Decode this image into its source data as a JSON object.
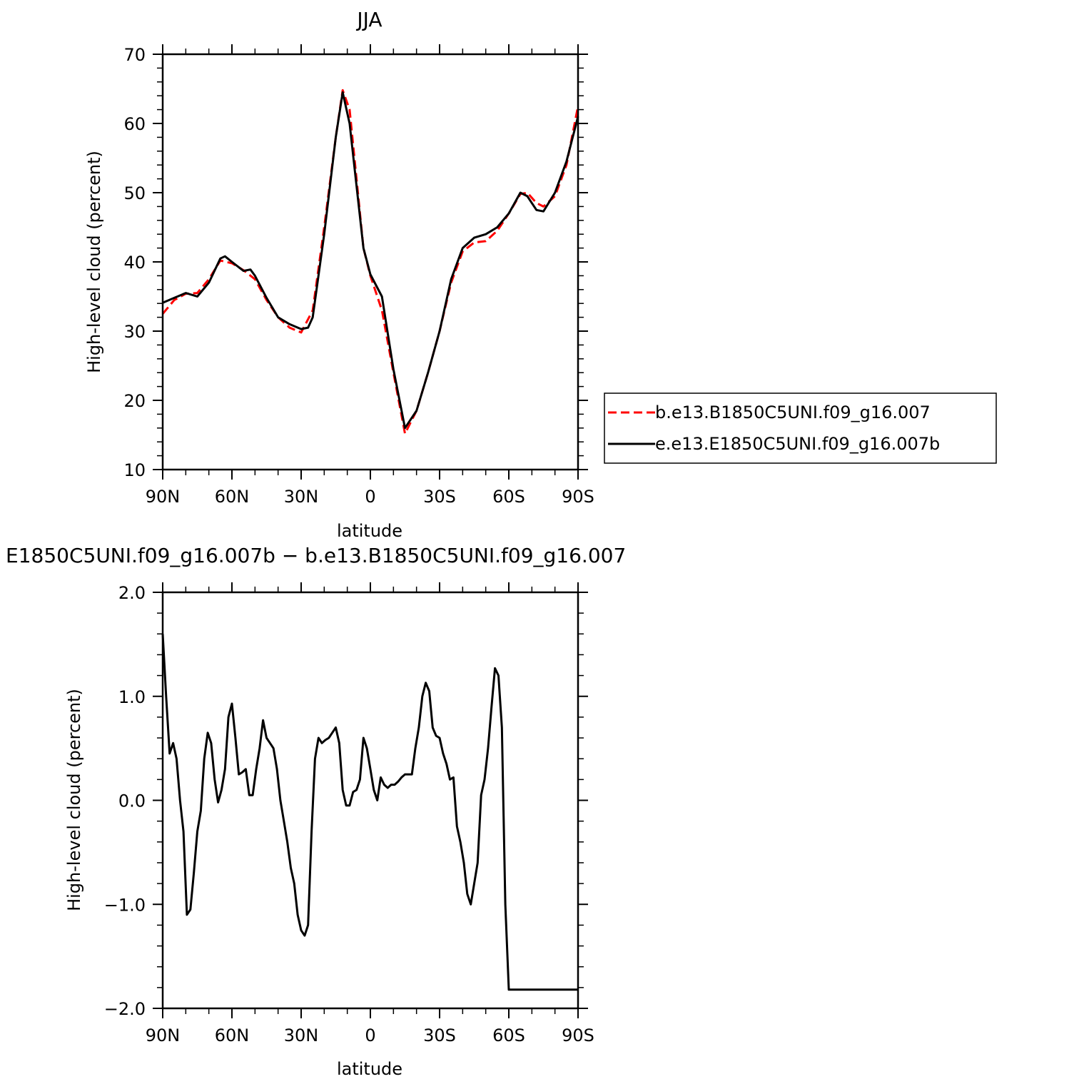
{
  "chart_data": [
    {
      "type": "line",
      "title": "JJA",
      "xlabel": "latitude",
      "ylabel": "High-level cloud (percent)",
      "xlim": [
        90,
        -90
      ],
      "ylim": [
        10,
        70
      ],
      "x_ticks": [
        {
          "value": 90,
          "label": "90N"
        },
        {
          "value": 60,
          "label": "60N"
        },
        {
          "value": 30,
          "label": "30N"
        },
        {
          "value": 0,
          "label": "0"
        },
        {
          "value": -30,
          "label": "30S"
        },
        {
          "value": -60,
          "label": "60S"
        },
        {
          "value": -90,
          "label": "90S"
        }
      ],
      "y_ticks": [
        {
          "value": 10,
          "label": "10"
        },
        {
          "value": 20,
          "label": "20"
        },
        {
          "value": 30,
          "label": "30"
        },
        {
          "value": 40,
          "label": "40"
        },
        {
          "value": 50,
          "label": "50"
        },
        {
          "value": 60,
          "label": "60"
        },
        {
          "value": 70,
          "label": "70"
        }
      ],
      "legend_position": "right",
      "grid": false,
      "series": [
        {
          "name": "b.e13.B1850C5UNI.f09_g16.007",
          "color": "#ff0000",
          "dash": true,
          "x": [
            90,
            85,
            80,
            75,
            70,
            65,
            60,
            55,
            50,
            45,
            40,
            35,
            30,
            25,
            20,
            15,
            12,
            9,
            6,
            3,
            0,
            -5,
            -10,
            -15,
            -20,
            -25,
            -30,
            -35,
            -40,
            -45,
            -50,
            -55,
            -60,
            -65,
            -68,
            -72,
            -75,
            -80,
            -85,
            -90
          ],
          "y": [
            32.5,
            34.5,
            35.4,
            35.5,
            37.5,
            40.2,
            39.8,
            38.8,
            37.5,
            34.5,
            32.0,
            30.5,
            29.8,
            33.0,
            45.0,
            58.0,
            64.8,
            62.0,
            52.0,
            42.0,
            38.0,
            33.0,
            24.0,
            15.2,
            18.5,
            24.0,
            30.0,
            37.0,
            41.5,
            42.8,
            43.0,
            44.5,
            47.0,
            49.8,
            50.0,
            48.5,
            48.0,
            49.5,
            54.0,
            62.5
          ]
        },
        {
          "name": "e.e13.E1850C5UNI.f09_g16.007b",
          "color": "#000000",
          "dash": false,
          "x": [
            90,
            85,
            80,
            75,
            70,
            65,
            63,
            60,
            55,
            52,
            50,
            45,
            40,
            35,
            30,
            27,
            25,
            20,
            15,
            12,
            9,
            6,
            3,
            0,
            -5,
            -10,
            -15,
            -20,
            -25,
            -30,
            -35,
            -40,
            -45,
            -50,
            -55,
            -60,
            -65,
            -68,
            -72,
            -75,
            -80,
            -85,
            -90
          ],
          "y": [
            34.1,
            34.8,
            35.5,
            35.0,
            37.0,
            40.5,
            40.8,
            40.0,
            38.7,
            38.9,
            38.0,
            34.8,
            32.0,
            31.0,
            30.3,
            30.5,
            32.0,
            44.0,
            58.0,
            64.5,
            60.0,
            51.0,
            42.0,
            38.2,
            35.0,
            24.5,
            16.0,
            18.5,
            24.0,
            30.0,
            37.5,
            42.0,
            43.5,
            44.0,
            45.0,
            47.0,
            50.0,
            49.5,
            47.5,
            47.3,
            50.0,
            54.5,
            61.0
          ]
        }
      ]
    },
    {
      "type": "line",
      "title": "E1850C5UNI.f09_g16.007b − b.e13.B1850C5UNI.f09_g16.007",
      "xlabel": "latitude",
      "ylabel": "High-level cloud (percent)",
      "xlim": [
        90,
        -90
      ],
      "ylim": [
        -2.0,
        2.0
      ],
      "x_ticks": [
        {
          "value": 90,
          "label": "90N"
        },
        {
          "value": 60,
          "label": "60N"
        },
        {
          "value": 30,
          "label": "30N"
        },
        {
          "value": 0,
          "label": "0"
        },
        {
          "value": -30,
          "label": "30S"
        },
        {
          "value": -60,
          "label": "60S"
        },
        {
          "value": -90,
          "label": "90S"
        }
      ],
      "y_ticks": [
        {
          "value": -2.0,
          "label": "−2.0"
        },
        {
          "value": -1.0,
          "label": "−1.0"
        },
        {
          "value": 0.0,
          "label": "0.0"
        },
        {
          "value": 1.0,
          "label": "1.0"
        },
        {
          "value": 2.0,
          "label": "2.0"
        }
      ],
      "grid": false,
      "series": [
        {
          "color": "#000000",
          "dash": false,
          "x": [
            90,
            88.5,
            87,
            85.5,
            84,
            82.5,
            81,
            79.5,
            78,
            76.5,
            75,
            73.5,
            72,
            70.5,
            69,
            67.5,
            66,
            64.5,
            63,
            61.5,
            60,
            58.5,
            57,
            55.5,
            54,
            52.5,
            51,
            49.5,
            48,
            46.5,
            45,
            43.5,
            42,
            40.5,
            39,
            37.5,
            36,
            34.5,
            33,
            31.5,
            30,
            28.5,
            27,
            25.5,
            24,
            22.5,
            21,
            19.5,
            18,
            16.5,
            15,
            13.5,
            12,
            10.5,
            9,
            7.5,
            6,
            4.5,
            3,
            1.5,
            0,
            -1.5,
            -3,
            -4.5,
            -6,
            -7.5,
            -9,
            -10.5,
            -12,
            -13.5,
            -15,
            -16.5,
            -18,
            -19.5,
            -21,
            -22.5,
            -24,
            -25.5,
            -27,
            -28.5,
            -30,
            -31.5,
            -33,
            -34.5,
            -36,
            -37.5,
            -39,
            -40.5,
            -42,
            -43.5,
            -45,
            -46.5,
            -48,
            -49.5,
            -51,
            -52.5,
            -54,
            -55.5,
            -57,
            -58.5,
            -60,
            -61.5,
            -63,
            -64.5,
            -66,
            -67.5,
            -69,
            -70.5,
            -72,
            -73.5,
            -75,
            -76.5,
            -78,
            -79.5,
            -81,
            -82.5,
            -84,
            -85.5,
            -87,
            -88.5,
            -90
          ],
          "y": [
            1.6,
            1.0,
            0.45,
            0.55,
            0.4,
            0.0,
            -0.3,
            -1.1,
            -1.05,
            -0.7,
            -0.3,
            -0.1,
            0.4,
            0.65,
            0.55,
            0.2,
            -0.02,
            0.1,
            0.3,
            0.8,
            0.93,
            0.6,
            0.25,
            0.27,
            0.3,
            0.05,
            0.05,
            0.3,
            0.5,
            0.77,
            0.6,
            0.55,
            0.5,
            0.3,
            0.0,
            -0.2,
            -0.4,
            -0.65,
            -0.8,
            -1.1,
            -1.25,
            -1.3,
            -1.2,
            -0.3,
            0.4,
            0.6,
            0.55,
            0.58,
            0.6,
            0.65,
            0.7,
            0.55,
            0.1,
            -0.05,
            -0.05,
            0.08,
            0.1,
            0.2,
            0.6,
            0.5,
            0.3,
            0.1,
            0.0,
            0.22,
            0.15,
            0.12,
            0.15,
            0.15,
            0.18,
            0.22,
            0.25,
            0.25,
            0.25,
            0.5,
            0.7,
            1.0,
            1.13,
            1.05,
            0.7,
            0.62,
            0.6,
            0.45,
            0.35,
            0.2,
            0.22,
            -0.25,
            -0.4,
            -0.6,
            -0.9,
            -1.0,
            -0.8,
            -0.6,
            0.05,
            0.2,
            0.5,
            0.9,
            1.27,
            1.2,
            0.7,
            -1.0,
            -1.82,
            -1.82,
            -1.82,
            -1.82,
            -1.82,
            -1.82,
            -1.82,
            -1.82,
            -1.82,
            -1.82,
            -1.82,
            -1.82,
            -1.82,
            -1.82,
            -1.82,
            -1.82,
            -1.82,
            -1.82,
            -1.82,
            -1.82,
            -1.82
          ]
        }
      ]
    }
  ]
}
